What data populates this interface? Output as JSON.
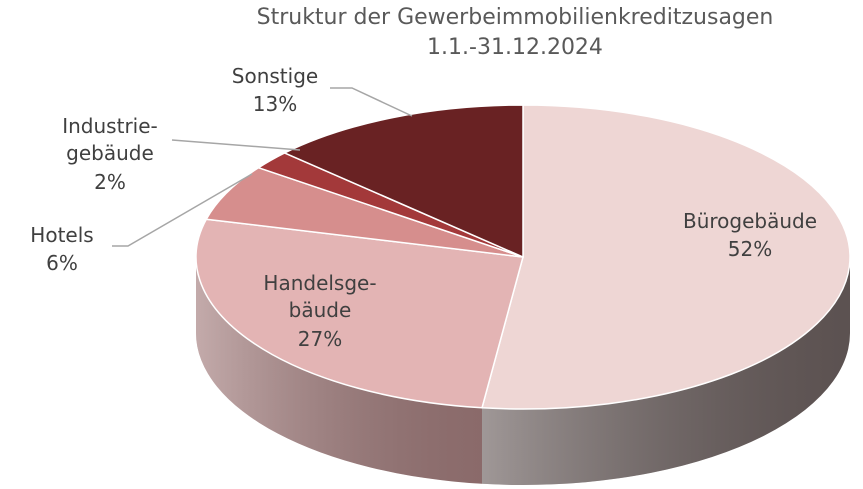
{
  "chart_data": {
    "type": "pie3d",
    "title": "Struktur der Gewerbeimmobilienkreditzusagen",
    "subtitle": "1.1.-31.12.2024",
    "categories": [
      "Bürogebäude",
      "Handelsge-bäude",
      "Hotels",
      "Industrie-gebäude",
      "Sonstige"
    ],
    "values": [
      52,
      27,
      6,
      2,
      13
    ],
    "value_labels": [
      "52%",
      "27%",
      "6%",
      "2%",
      "13%"
    ],
    "colors": [
      "#eed6d4",
      "#e3b4b4",
      "#d68e8d",
      "#a3393a",
      "#692223"
    ],
    "side_colors": [
      "#6c605f",
      "#a37d7d",
      "#a86666",
      "#7a2a2a",
      "#4a1718"
    ]
  }
}
